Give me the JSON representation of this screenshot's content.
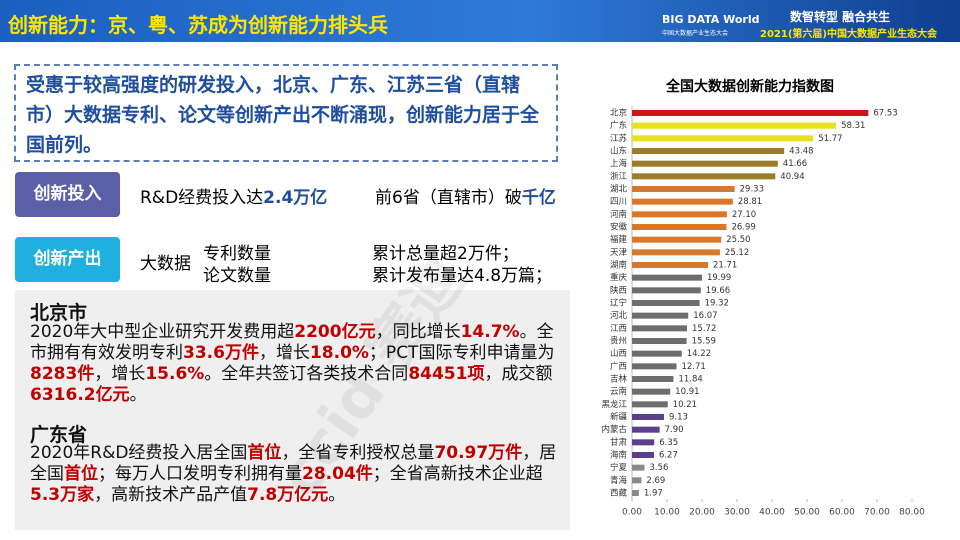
{
  "header": {
    "title": "创新能力：京、粤、苏成为创新能力排头兵",
    "logo": "BIG DATA World",
    "logo_sub": "中国大数据产业生态大会",
    "slogan": "数智转型 融合共生",
    "event": "2021(第六届)中国大数据产业生态大会"
  },
  "summary": "受惠于较高强度的研发投入，北京、广东、江苏三省（直辖市）大数据专利、论文等创新产出不断涌现，创新能力居于全国前列。",
  "input": {
    "badge": "创新投入",
    "segments": [
      {
        "text": "R&D经费投入达",
        "em": false
      },
      {
        "text": "2.4万亿",
        "em": true
      }
    ],
    "segments2": [
      {
        "text": "前6省（直辖市）破",
        "em": false
      },
      {
        "text": "千亿",
        "em": true
      }
    ]
  },
  "output": {
    "badge": "创新产出",
    "label": "大数据",
    "items": [
      "专利数量",
      "论文数量"
    ],
    "facts": [
      "累计总量超2万件；",
      "累计发布量达4.8万篇；"
    ]
  },
  "watermark": "ccid 赛迪",
  "beijing": {
    "title": "北京市",
    "segments": [
      {
        "text": "2020年大中型企业研究开发费用超",
        "em": false
      },
      {
        "text": "2200亿元",
        "em": true
      },
      {
        "text": "，同比增长",
        "em": false
      },
      {
        "text": "14.7%",
        "em": true
      },
      {
        "text": "。全市拥有有效发明专利",
        "em": false
      },
      {
        "text": "33.6万件",
        "em": true
      },
      {
        "text": "，增长",
        "em": false
      },
      {
        "text": "18.0%",
        "em": true
      },
      {
        "text": "；PCT国际专利申请量为",
        "em": false
      },
      {
        "text": "8283件",
        "em": true
      },
      {
        "text": "，增长",
        "em": false
      },
      {
        "text": "15.6%",
        "em": true
      },
      {
        "text": "。全年共签订各类技术合同",
        "em": false
      },
      {
        "text": "84451项",
        "em": true
      },
      {
        "text": "，成交额",
        "em": false
      },
      {
        "text": "6316.2亿元",
        "em": true
      },
      {
        "text": "。",
        "em": false
      }
    ]
  },
  "guangdong": {
    "title": "广东省",
    "segments": [
      {
        "text": "2020年R&D经费投入居全国",
        "em": false
      },
      {
        "text": "首位",
        "em": true
      },
      {
        "text": "，全省专利授权总量",
        "em": false
      },
      {
        "text": "70.97万件",
        "em": true
      },
      {
        "text": "，居全国",
        "em": false
      },
      {
        "text": "首位",
        "em": true
      },
      {
        "text": "；每万人口发明专利拥有量",
        "em": false
      },
      {
        "text": "28.04件",
        "em": true
      },
      {
        "text": "；全省高新技术企业超",
        "em": false
      },
      {
        "text": "5.3万家",
        "em": true
      },
      {
        "text": "，高新技术产品产值",
        "em": false
      },
      {
        "text": "7.8万亿元",
        "em": true
      },
      {
        "text": "。",
        "em": false
      }
    ]
  },
  "chart_data": {
    "type": "hbar",
    "title": "全国大数据创新能力指数图",
    "categories": [
      "北京",
      "广东",
      "江苏",
      "山东",
      "上海",
      "浙江",
      "湖北",
      "四川",
      "河南",
      "安徽",
      "福建",
      "天津",
      "湖南",
      "重庆",
      "陕西",
      "辽宁",
      "河北",
      "江西",
      "贵州",
      "山西",
      "广西",
      "吉林",
      "云南",
      "黑龙江",
      "新疆",
      "内蒙古",
      "甘肃",
      "海南",
      "宁夏",
      "青海",
      "西藏"
    ],
    "values": [
      67.53,
      58.31,
      51.77,
      43.48,
      41.66,
      40.94,
      29.33,
      28.81,
      27.1,
      26.99,
      25.5,
      25.12,
      21.71,
      19.99,
      19.66,
      19.32,
      16.07,
      15.72,
      15.59,
      14.22,
      12.71,
      11.84,
      10.91,
      10.21,
      9.13,
      7.9,
      6.35,
      6.27,
      3.56,
      2.69,
      1.97
    ],
    "value_labels": [
      "67.53",
      "58.31",
      "51.77",
      "43.48",
      "41.66",
      "40.94",
      "29.33",
      "28.81",
      "27.10",
      "26.99",
      "25.50",
      "25.12",
      "21.71",
      "19.99",
      "19.66",
      "19.32",
      "16.07",
      "15.72",
      "15.59",
      "14.22",
      "12.71",
      "11.84",
      "10.91",
      "10.21",
      "9.13",
      "7.90",
      "6.35",
      "6.27",
      "3.56",
      "2.69",
      "1.97"
    ],
    "colors": [
      "#d0141a",
      "#e8e01a",
      "#e8e01a",
      "#9a7d26",
      "#9a7d26",
      "#9a7d26",
      "#d9782a",
      "#d9782a",
      "#d9782a",
      "#d9782a",
      "#d9782a",
      "#d9782a",
      "#d9782a",
      "#6d6d6d",
      "#6d6d6d",
      "#6d6d6d",
      "#6d6d6d",
      "#6d6d6d",
      "#6d6d6d",
      "#6d6d6d",
      "#6d6d6d",
      "#6d6d6d",
      "#6d6d6d",
      "#6d6d6d",
      "#5b3f8c",
      "#5b3f8c",
      "#5b3f8c",
      "#5b3f8c",
      "#8a8a8a",
      "#8a8a8a",
      "#8a8a8a"
    ],
    "xlim": [
      0,
      80
    ],
    "xticks": [
      {
        "value": 0,
        "label": "0.00"
      },
      {
        "value": 10,
        "label": "10.00"
      },
      {
        "value": 20,
        "label": "20.00"
      },
      {
        "value": 30,
        "label": "30.00"
      },
      {
        "value": 40,
        "label": "40.00"
      },
      {
        "value": 50,
        "label": "50.00"
      },
      {
        "value": 60,
        "label": "60.00"
      },
      {
        "value": 70,
        "label": "70.00"
      },
      {
        "value": 80,
        "label": "80.00"
      }
    ],
    "grid": false
  }
}
